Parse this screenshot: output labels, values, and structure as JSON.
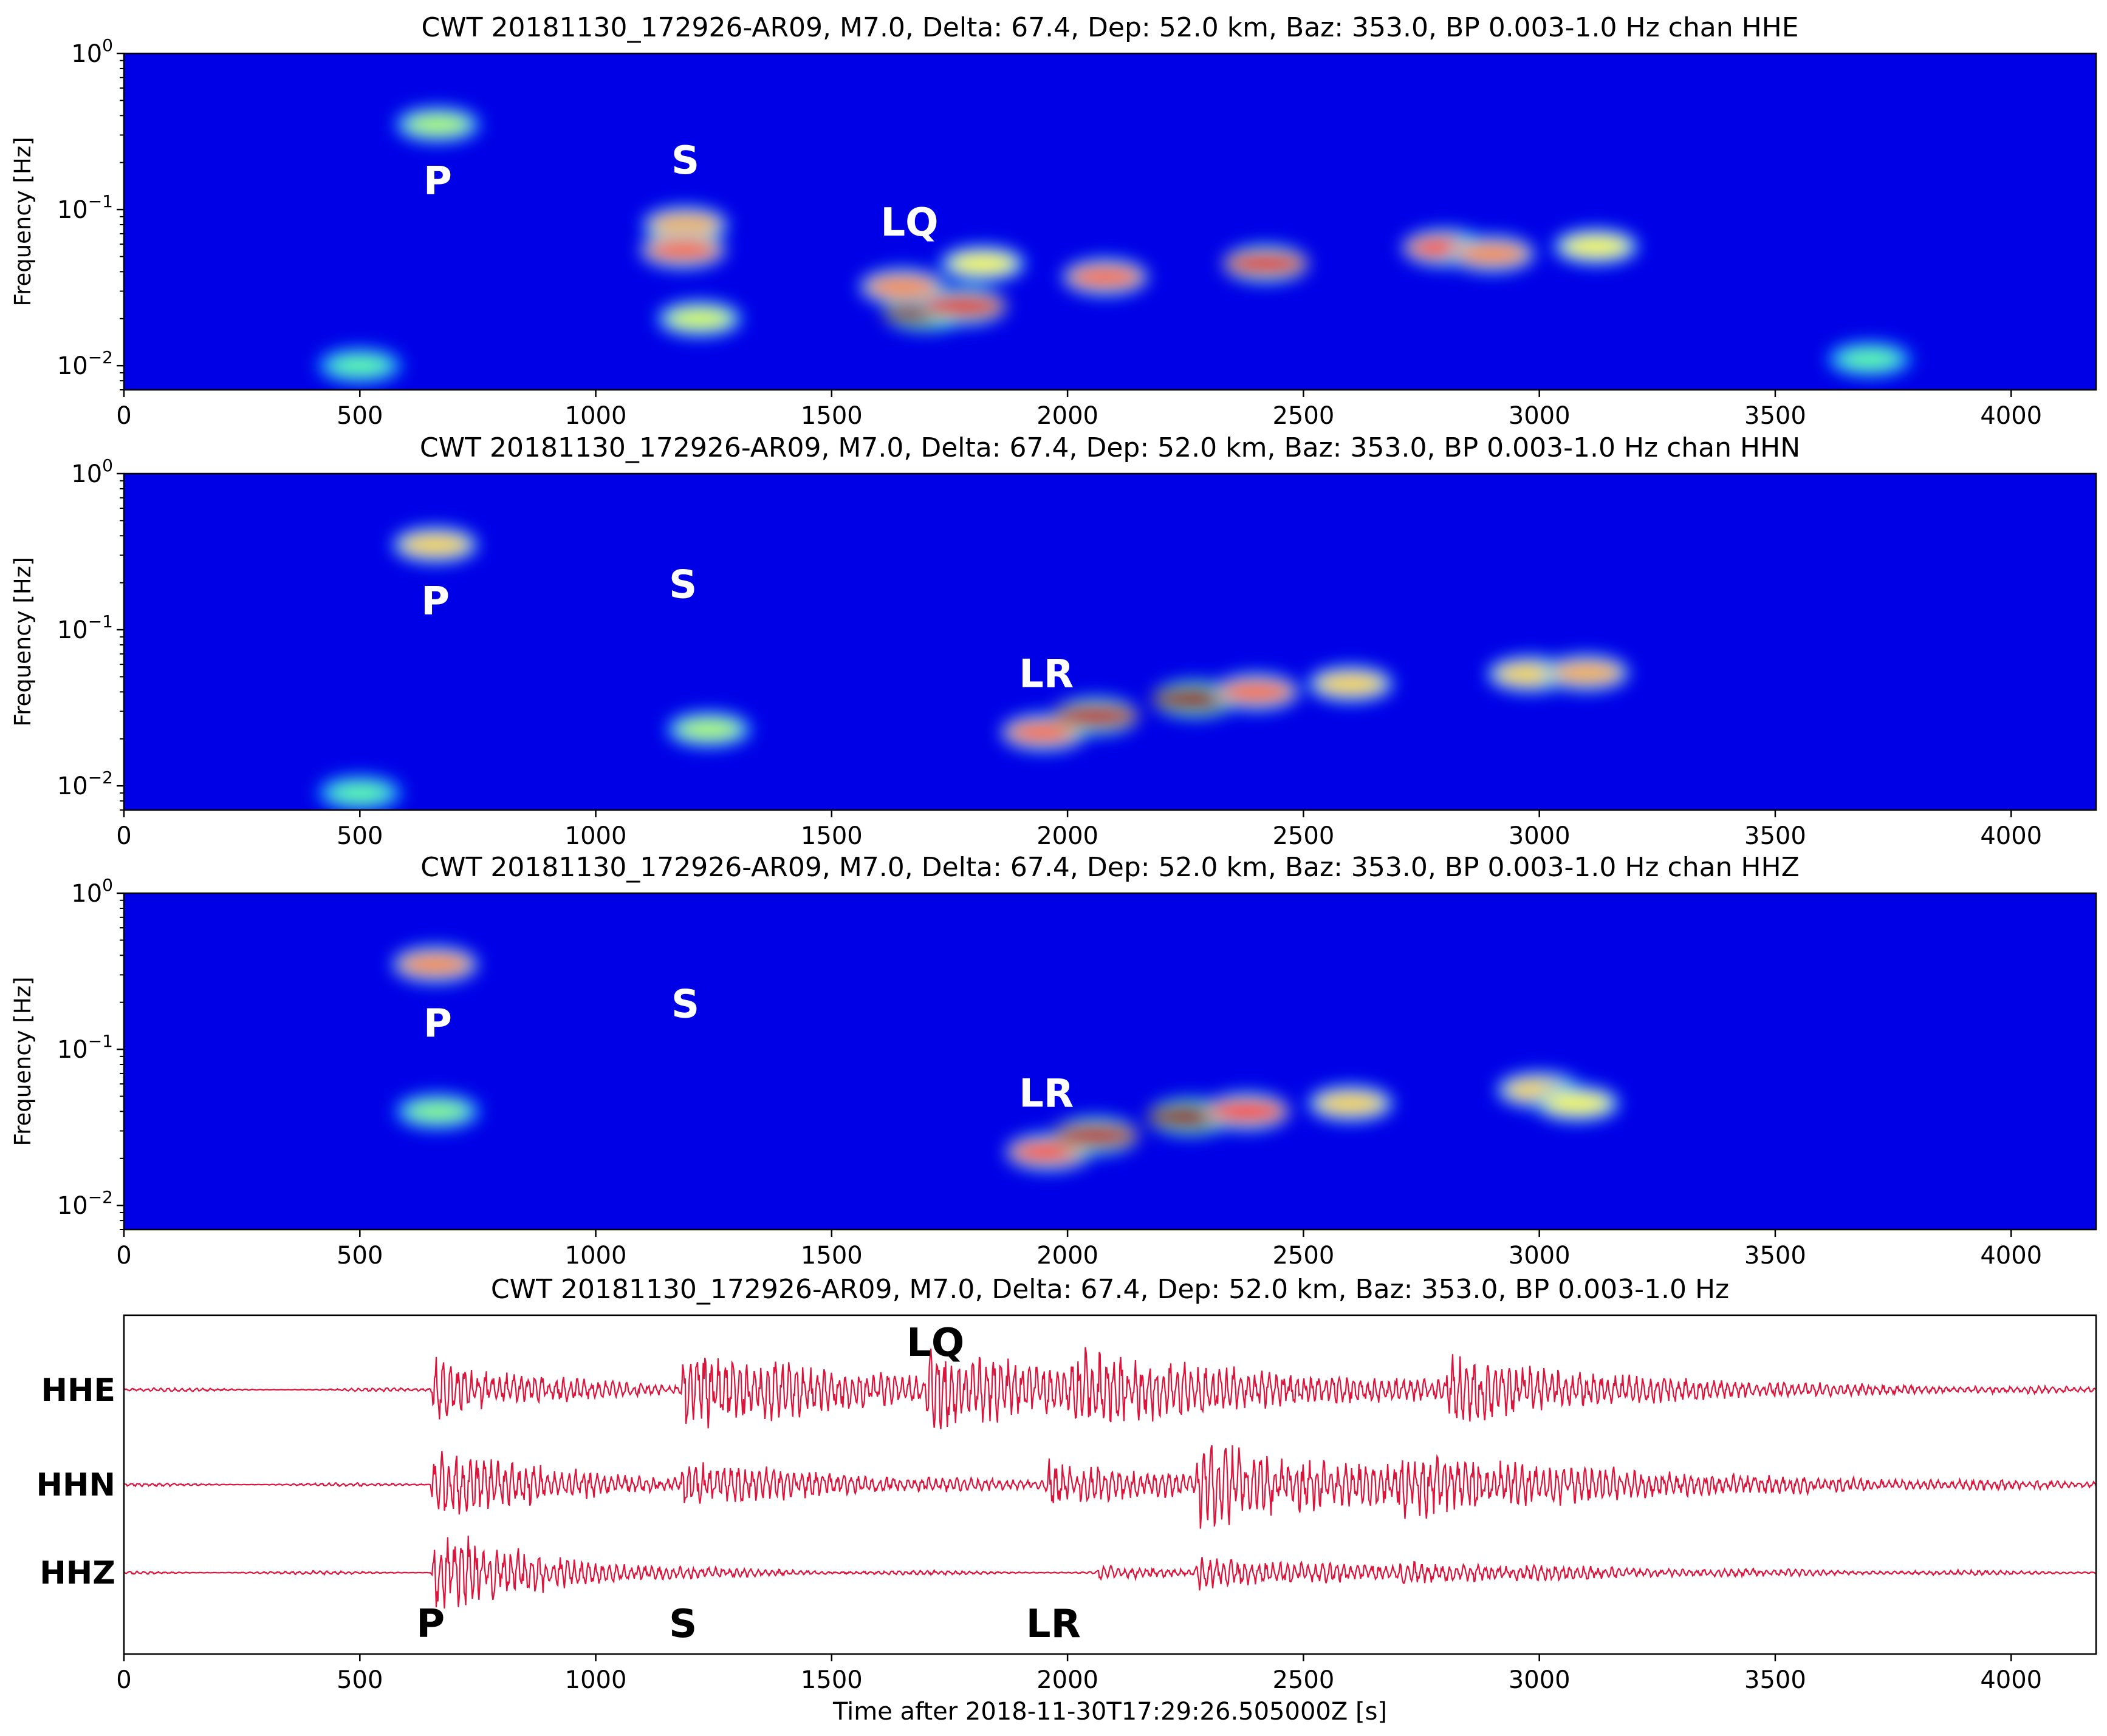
{
  "chart_data": [
    {
      "type": "heatmap",
      "title": "CWT 20181130_172926-AR09, M7.0, Delta: 67.4, Dep: 52.0 km, Baz: 353.0, BP 0.003-1.0 Hz chan HHE",
      "channel": "HHE",
      "xlabel": "",
      "ylabel": "Frequency [Hz]",
      "yscale": "log",
      "xlim": [
        0,
        4180
      ],
      "ylim": [
        0.007,
        1.0
      ],
      "x_ticks": [
        "0",
        "500",
        "1000",
        "1500",
        "2000",
        "2500",
        "3000",
        "3500",
        "4000"
      ],
      "y_ticks": [
        {
          "base": "10",
          "exp": "0"
        },
        {
          "base": "10",
          "exp": "−1"
        },
        {
          "base": "10",
          "exp": "−2"
        }
      ],
      "colormap": "jet",
      "annotations": [
        {
          "text": "P",
          "x": 665,
          "y": 0.125
        },
        {
          "text": "S",
          "x": 1190,
          "y": 0.17
        },
        {
          "text": "LQ",
          "x": 1665,
          "y": 0.068
        }
      ],
      "energy_blobs": [
        {
          "x": 665,
          "y": 0.35,
          "level": 0.45
        },
        {
          "x": 1190,
          "y": 0.08,
          "level": 0.65
        },
        {
          "x": 1185,
          "y": 0.055,
          "level": 0.75
        },
        {
          "x": 1220,
          "y": 0.02,
          "level": 0.5
        },
        {
          "x": 1700,
          "y": 0.022,
          "level": 1.0
        },
        {
          "x": 1780,
          "y": 0.024,
          "level": 0.9
        },
        {
          "x": 1650,
          "y": 0.032,
          "level": 0.7
        },
        {
          "x": 1820,
          "y": 0.045,
          "level": 0.55
        },
        {
          "x": 2080,
          "y": 0.037,
          "level": 0.75
        },
        {
          "x": 2420,
          "y": 0.045,
          "level": 0.9
        },
        {
          "x": 2800,
          "y": 0.057,
          "level": 0.8
        },
        {
          "x": 2900,
          "y": 0.052,
          "level": 0.7
        },
        {
          "x": 3120,
          "y": 0.058,
          "level": 0.55
        },
        {
          "x": 3700,
          "y": 0.011,
          "level": 0.35
        },
        {
          "x": 500,
          "y": 0.01,
          "level": 0.35
        }
      ]
    },
    {
      "type": "heatmap",
      "title": "CWT 20181130_172926-AR09, M7.0, Delta: 67.4, Dep: 52.0 km, Baz: 353.0, BP 0.003-1.0 Hz chan HHN",
      "channel": "HHN",
      "xlabel": "",
      "ylabel": "Frequency [Hz]",
      "yscale": "log",
      "xlim": [
        0,
        4180
      ],
      "ylim": [
        0.007,
        1.0
      ],
      "x_ticks": [
        "0",
        "500",
        "1000",
        "1500",
        "2000",
        "2500",
        "3000",
        "3500",
        "4000"
      ],
      "y_ticks": [
        {
          "base": "10",
          "exp": "0"
        },
        {
          "base": "10",
          "exp": "−1"
        },
        {
          "base": "10",
          "exp": "−2"
        }
      ],
      "colormap": "jet",
      "annotations": [
        {
          "text": "P",
          "x": 660,
          "y": 0.125
        },
        {
          "text": "S",
          "x": 1185,
          "y": 0.16
        },
        {
          "text": "LR",
          "x": 1955,
          "y": 0.043
        }
      ],
      "energy_blobs": [
        {
          "x": 660,
          "y": 0.35,
          "level": 0.6
        },
        {
          "x": 1240,
          "y": 0.023,
          "level": 0.45
        },
        {
          "x": 1950,
          "y": 0.022,
          "level": 0.75
        },
        {
          "x": 2060,
          "y": 0.028,
          "level": 0.95
        },
        {
          "x": 2270,
          "y": 0.036,
          "level": 1.0
        },
        {
          "x": 2400,
          "y": 0.04,
          "level": 0.75
        },
        {
          "x": 2600,
          "y": 0.045,
          "level": 0.6
        },
        {
          "x": 2980,
          "y": 0.052,
          "level": 0.6
        },
        {
          "x": 3100,
          "y": 0.053,
          "level": 0.65
        },
        {
          "x": 500,
          "y": 0.009,
          "level": 0.35
        }
      ]
    },
    {
      "type": "heatmap",
      "title": "CWT 20181130_172926-AR09, M7.0, Delta: 67.4, Dep: 52.0 km, Baz: 353.0, BP 0.003-1.0 Hz chan HHZ",
      "channel": "HHZ",
      "xlabel": "",
      "ylabel": "Frequency [Hz]",
      "yscale": "log",
      "xlim": [
        0,
        4180
      ],
      "ylim": [
        0.007,
        1.0
      ],
      "x_ticks": [
        "0",
        "500",
        "1000",
        "1500",
        "2000",
        "2500",
        "3000",
        "3500",
        "4000"
      ],
      "y_ticks": [
        {
          "base": "10",
          "exp": "0"
        },
        {
          "base": "10",
          "exp": "−1"
        },
        {
          "base": "10",
          "exp": "−2"
        }
      ],
      "colormap": "jet",
      "annotations": [
        {
          "text": "P",
          "x": 665,
          "y": 0.12
        },
        {
          "text": "S",
          "x": 1190,
          "y": 0.16
        },
        {
          "text": "LR",
          "x": 1955,
          "y": 0.043
        }
      ],
      "energy_blobs": [
        {
          "x": 660,
          "y": 0.35,
          "level": 0.7
        },
        {
          "x": 665,
          "y": 0.04,
          "level": 0.4
        },
        {
          "x": 1960,
          "y": 0.022,
          "level": 0.8
        },
        {
          "x": 2060,
          "y": 0.028,
          "level": 0.95
        },
        {
          "x": 2260,
          "y": 0.037,
          "level": 1.0
        },
        {
          "x": 2380,
          "y": 0.04,
          "level": 0.85
        },
        {
          "x": 2600,
          "y": 0.045,
          "level": 0.6
        },
        {
          "x": 3000,
          "y": 0.055,
          "level": 0.6
        },
        {
          "x": 3080,
          "y": 0.045,
          "level": 0.55
        }
      ]
    },
    {
      "type": "line",
      "title": "CWT 20181130_172926-AR09, M7.0, Delta: 67.4, Dep: 52.0 km, Baz: 353.0, BP 0.003-1.0 Hz",
      "xlabel": "Time after 2018-11-30T17:29:26.505000Z [s]",
      "ylabel": "",
      "xlim": [
        0,
        4180
      ],
      "x_ticks": [
        "0",
        "500",
        "1000",
        "1500",
        "2000",
        "2500",
        "3000",
        "3500",
        "4000"
      ],
      "trace_color": "#dc143c",
      "series": [
        {
          "name": "HHE",
          "offset": 0.78,
          "scale": 0.13,
          "events": [
            {
              "t": 650,
              "amp": 0.8,
              "dur": 250
            },
            {
              "t": 1180,
              "amp": 1.0,
              "dur": 450
            },
            {
              "t": 1700,
              "amp": 0.8,
              "dur": 300
            },
            {
              "t": 2000,
              "amp": 0.6,
              "dur": 600
            },
            {
              "t": 2800,
              "amp": 0.65,
              "dur": 400
            }
          ]
        },
        {
          "name": "HHN",
          "offset": 0.5,
          "scale": 0.13,
          "events": [
            {
              "t": 650,
              "amp": 0.9,
              "dur": 300
            },
            {
              "t": 1180,
              "amp": 0.45,
              "dur": 400
            },
            {
              "t": 1950,
              "amp": 0.55,
              "dur": 300
            },
            {
              "t": 2270,
              "amp": 0.85,
              "dur": 500
            },
            {
              "t": 2700,
              "amp": 0.45,
              "dur": 600
            }
          ]
        },
        {
          "name": "HHZ",
          "offset": 0.24,
          "scale": 0.13,
          "events": [
            {
              "t": 650,
              "amp": 1.0,
              "dur": 200
            },
            {
              "t": 700,
              "amp": 0.25,
              "dur": 300
            },
            {
              "t": 2060,
              "amp": 0.15,
              "dur": 200
            },
            {
              "t": 2270,
              "amp": 0.35,
              "dur": 450
            },
            {
              "t": 2700,
              "amp": 0.15,
              "dur": 500
            }
          ]
        }
      ],
      "annotations": [
        {
          "text": "LQ",
          "x": 1720,
          "y": 0.88
        },
        {
          "text": "P",
          "x": 650,
          "y": 0.05
        },
        {
          "text": "S",
          "x": 1185,
          "y": 0.05
        },
        {
          "text": "LR",
          "x": 1970,
          "y": 0.05
        }
      ]
    }
  ]
}
